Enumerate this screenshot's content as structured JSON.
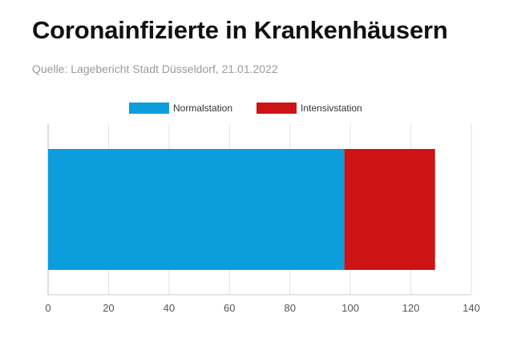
{
  "header": {
    "title": "Coronainfizierte in Krankenhäusern",
    "subtitle": "Quelle: Lagebericht Stadt Düsseldorf, 21.01.2022"
  },
  "chart_data": {
    "type": "bar",
    "orientation": "horizontal",
    "stacked": true,
    "categories": [
      ""
    ],
    "series": [
      {
        "name": "Normalstation",
        "values": [
          98
        ],
        "color": "#0c9ddc"
      },
      {
        "name": "Intensivstation",
        "values": [
          30
        ],
        "color": "#cc1414"
      }
    ],
    "title": "",
    "xlabel": "",
    "ylabel": "",
    "xlim": [
      0,
      140
    ],
    "xticks": [
      0,
      20,
      40,
      60,
      80,
      100,
      120,
      140
    ],
    "grid": true,
    "legend_position": "top-center"
  }
}
